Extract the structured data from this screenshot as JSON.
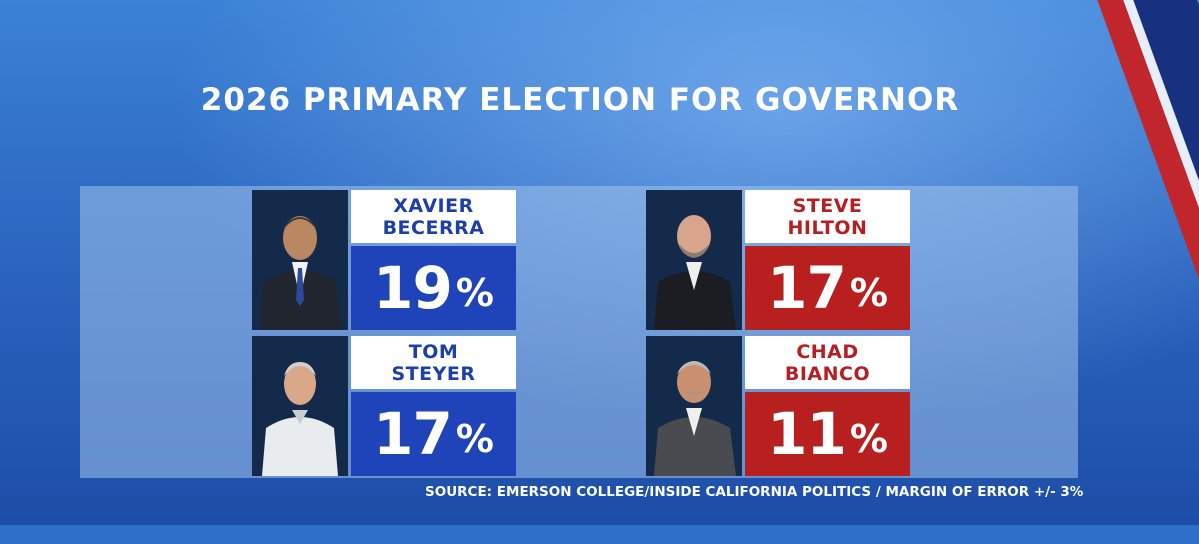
{
  "title": "2026 PRIMARY ELECTION FOR GOVERNOR",
  "source": "SOURCE: EMERSON COLLEGE/INSIDE CALIFORNIA POLITICS / MARGIN OF ERROR +/- 3%",
  "colors": {
    "blue_party": "#1f43b8",
    "red_party": "#b8201f"
  },
  "candidates": [
    {
      "first": "XAVIER",
      "last": "BECERRA",
      "percent": "19",
      "sign": "%"
    },
    {
      "first": "STEVE",
      "last": "HILTON",
      "percent": "17",
      "sign": "%"
    },
    {
      "first": "TOM",
      "last": "STEYER",
      "percent": "17",
      "sign": "%"
    },
    {
      "first": "CHAD",
      "last": "BIANCO",
      "percent": "11",
      "sign": "%"
    }
  ]
}
